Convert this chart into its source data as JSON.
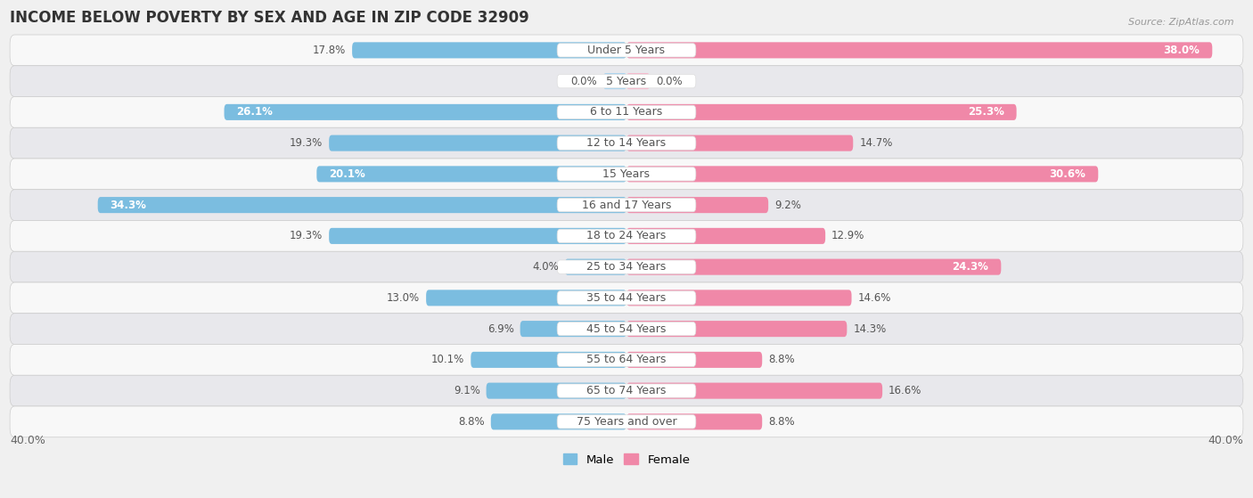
{
  "title": "INCOME BELOW POVERTY BY SEX AND AGE IN ZIP CODE 32909",
  "source": "Source: ZipAtlas.com",
  "categories": [
    "Under 5 Years",
    "5 Years",
    "6 to 11 Years",
    "12 to 14 Years",
    "15 Years",
    "16 and 17 Years",
    "18 to 24 Years",
    "25 to 34 Years",
    "35 to 44 Years",
    "45 to 54 Years",
    "55 to 64 Years",
    "65 to 74 Years",
    "75 Years and over"
  ],
  "male": [
    17.8,
    0.0,
    26.1,
    19.3,
    20.1,
    34.3,
    19.3,
    4.0,
    13.0,
    6.9,
    10.1,
    9.1,
    8.8
  ],
  "female": [
    38.0,
    0.0,
    25.3,
    14.7,
    30.6,
    9.2,
    12.9,
    24.3,
    14.6,
    14.3,
    8.8,
    16.6,
    8.8
  ],
  "male_color": "#7bbde0",
  "female_color": "#f088a8",
  "male_color_light": "#a8d4f0",
  "female_color_light": "#f8b8cc",
  "xlim": 40.0,
  "background_color": "#f0f0f0",
  "row_bg_even": "#f8f8f8",
  "row_bg_odd": "#e8e8ec",
  "title_fontsize": 12,
  "label_fontsize": 9,
  "tick_fontsize": 9,
  "value_fontsize": 8.5
}
